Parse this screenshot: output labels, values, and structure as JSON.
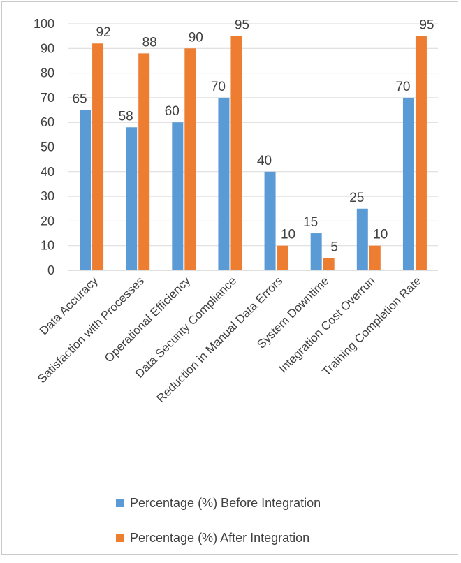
{
  "chart_data": {
    "type": "bar",
    "categories": [
      "Data Accuracy",
      "Satisfaction with Processes",
      "Operational Efficiency",
      "Data Security Compliance",
      "Reduction in Manual Data Errors",
      "System Downtime",
      "Integration Cost Overrun",
      "Training Completion Rate"
    ],
    "series": [
      {
        "name": "Percentage (%) Before Integration",
        "values": [
          65,
          58,
          60,
          70,
          40,
          15,
          25,
          70
        ],
        "color": "#5b9bd5"
      },
      {
        "name": "Percentage (%) After Integration",
        "values": [
          92,
          88,
          90,
          95,
          10,
          5,
          10,
          95
        ],
        "color": "#ed7d31"
      }
    ],
    "ylim": [
      0,
      100
    ],
    "yticks": [
      0,
      10,
      20,
      30,
      40,
      50,
      60,
      70,
      80,
      90,
      100
    ],
    "grid": true,
    "legend_position": "bottom",
    "data_labels": true
  }
}
